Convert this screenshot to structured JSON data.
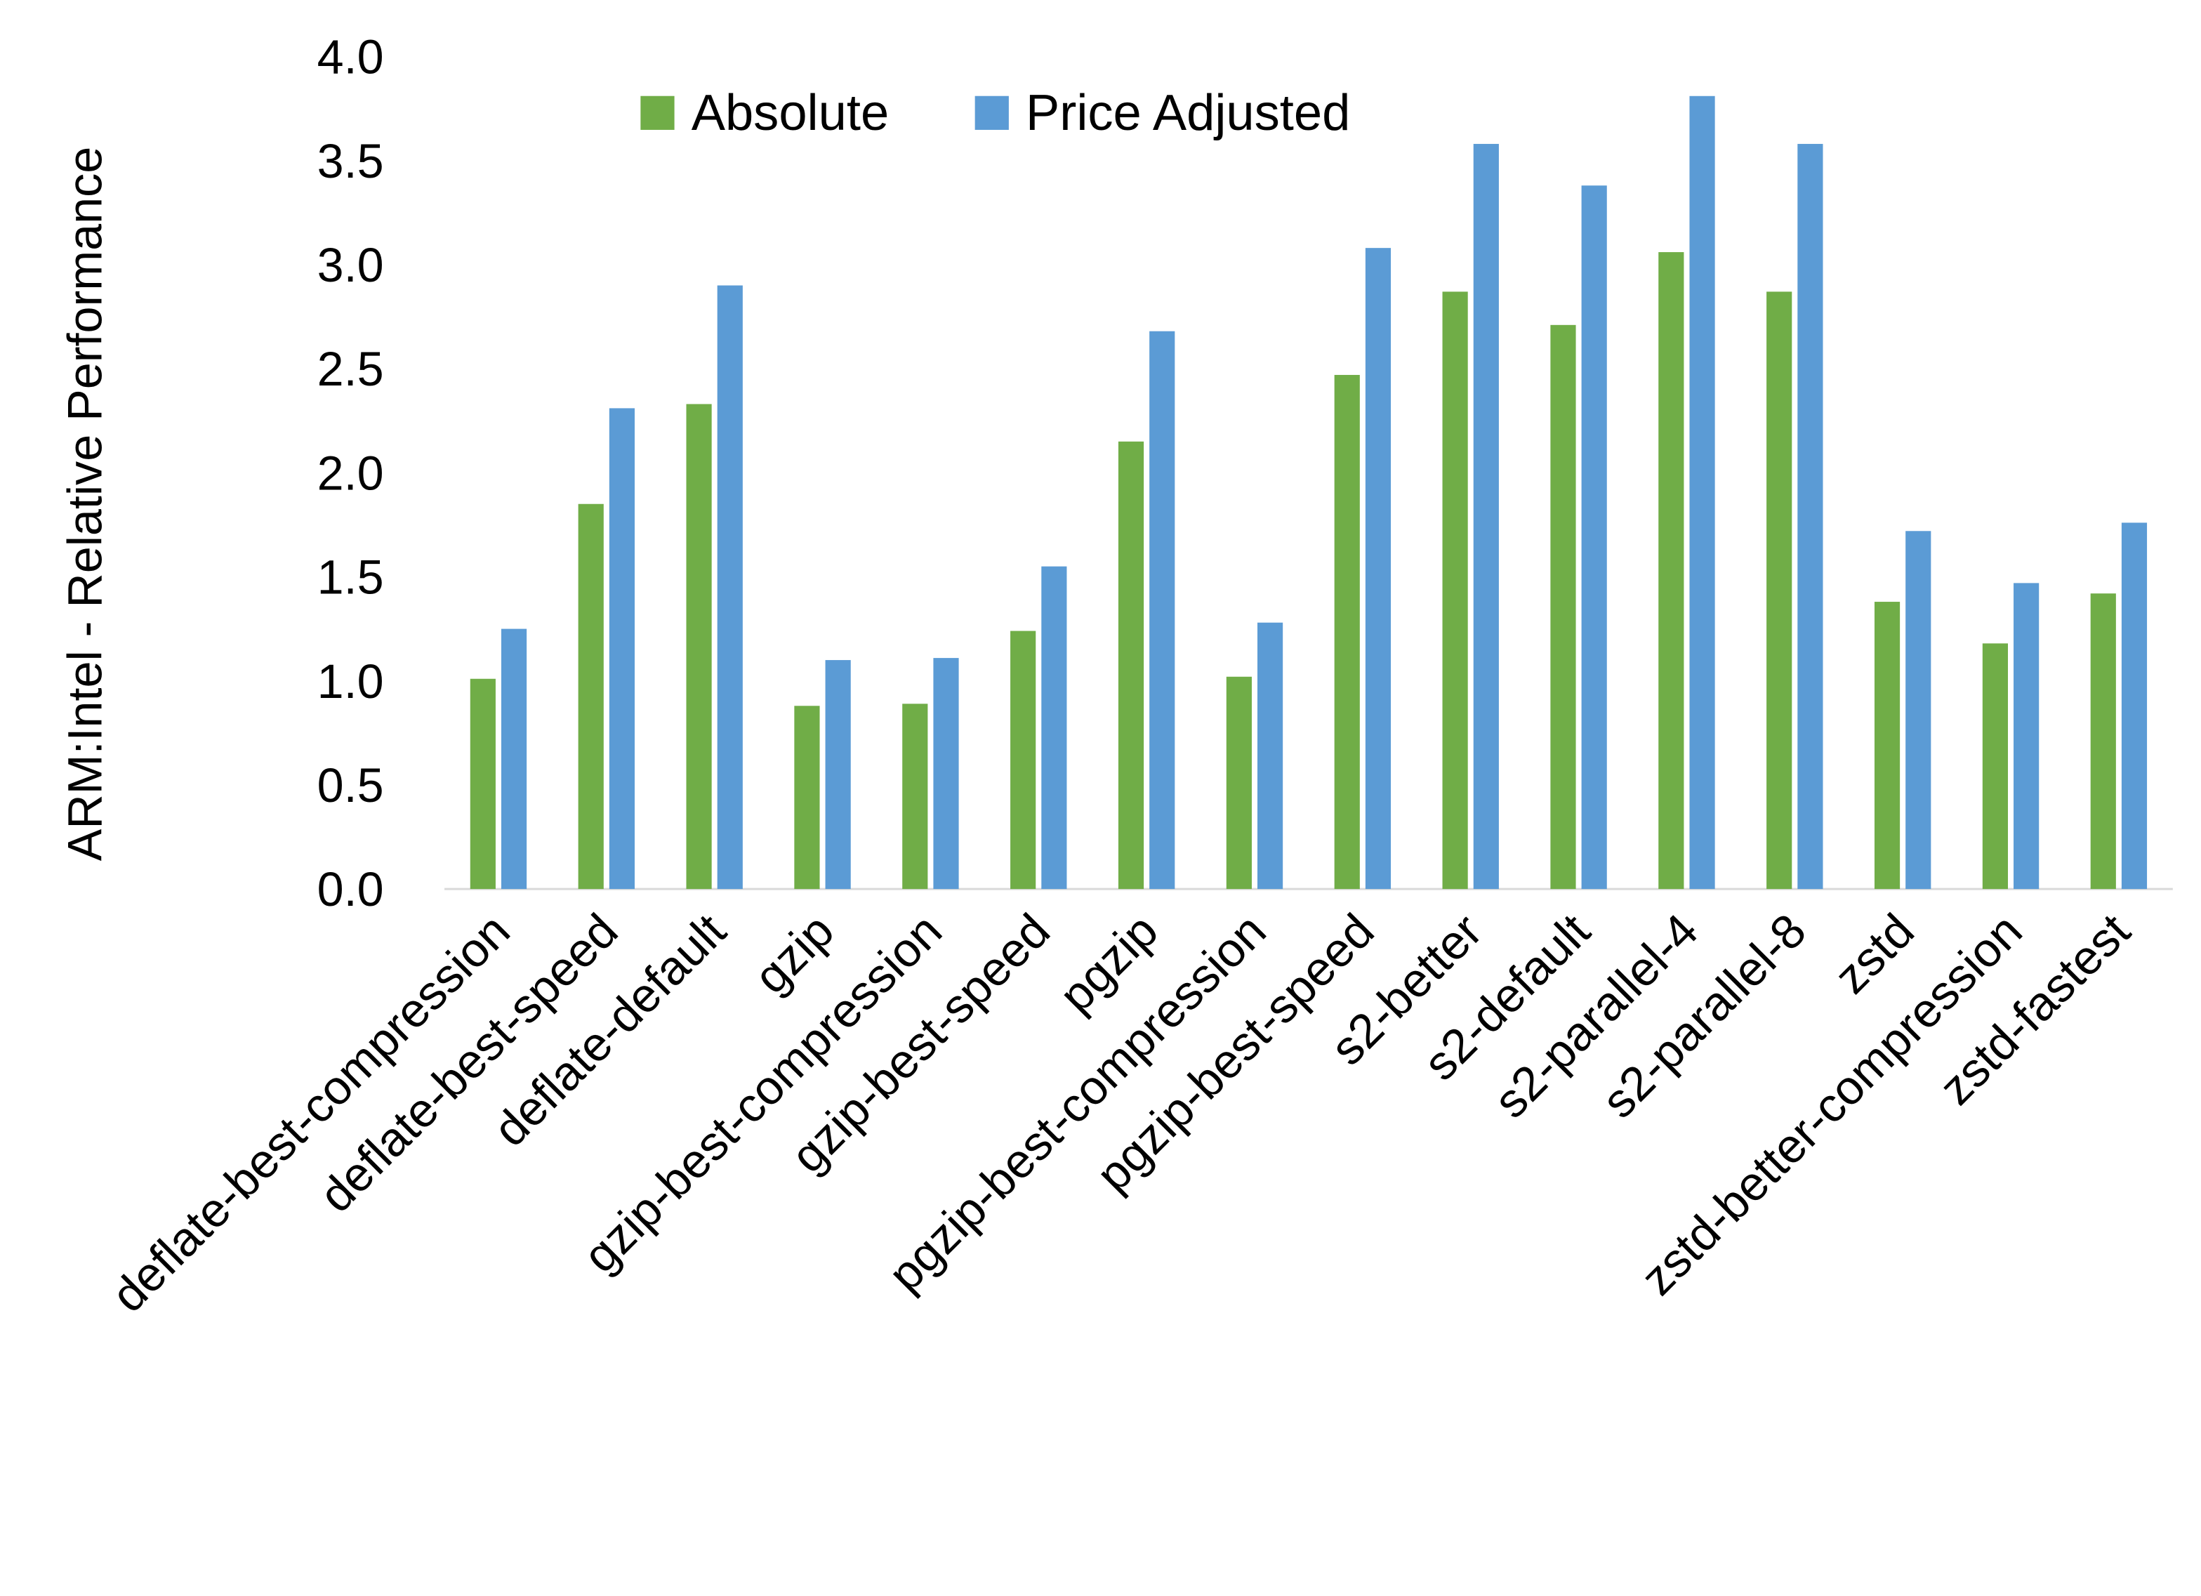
{
  "chart_data": {
    "type": "bar",
    "title": "",
    "xlabel": "",
    "ylabel": "ARM:Intel - Relative Performance",
    "ylim": [
      0,
      4.0
    ],
    "yticks": [
      "0.0",
      "0.5",
      "1.0",
      "1.5",
      "2.0",
      "2.5",
      "3.0",
      "3.5",
      "4.0"
    ],
    "grid": false,
    "legend_position": "top",
    "categories": [
      "deflate-best-compression",
      "deflate-best-speed",
      "deflate-default",
      "gzip",
      "gzip-best-compression",
      "gzip-best-speed",
      "pgzip",
      "pgzip-best-compression",
      "pgzip-best-speed",
      "s2-better",
      "s2-default",
      "s2-parallel-4",
      "s2-parallel-8",
      "zstd",
      "zstd-better-compression",
      "zstd-fastest"
    ],
    "series": [
      {
        "name": "Absolute",
        "color": "#70AD47",
        "values": [
          1.01,
          1.85,
          2.33,
          0.88,
          0.89,
          1.24,
          2.15,
          1.02,
          2.47,
          2.87,
          2.71,
          3.06,
          2.87,
          1.38,
          1.18,
          1.42
        ]
      },
      {
        "name": "Price Adjusted",
        "color": "#5B9BD5",
        "values": [
          1.25,
          2.31,
          2.9,
          1.1,
          1.11,
          1.55,
          2.68,
          1.28,
          3.08,
          3.58,
          3.38,
          3.81,
          3.58,
          1.72,
          1.47,
          1.76
        ]
      }
    ]
  }
}
